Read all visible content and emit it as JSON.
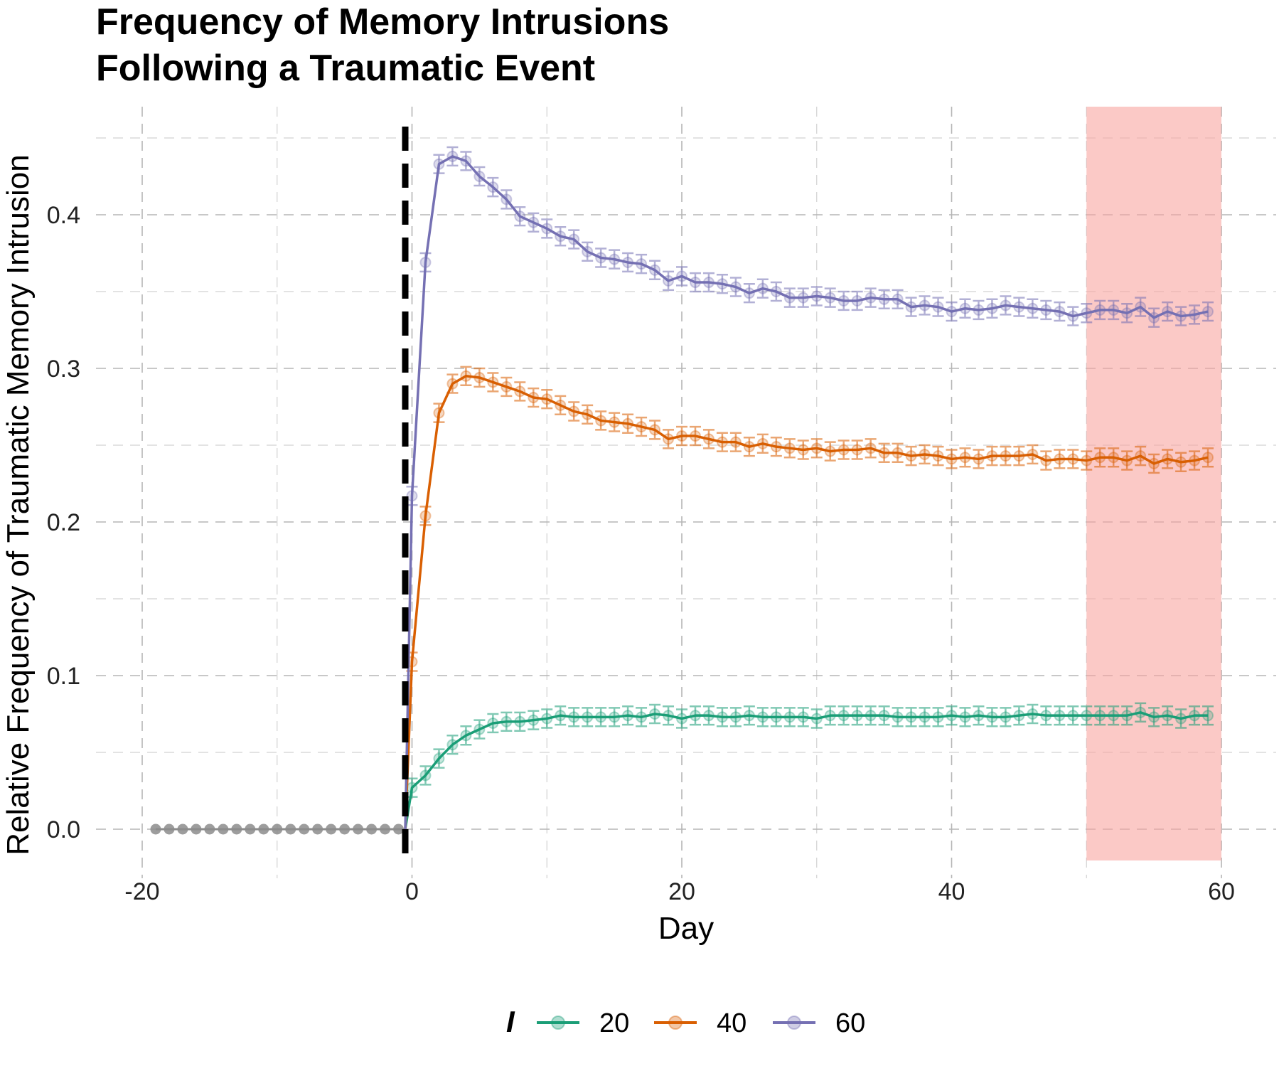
{
  "chart_data": {
    "type": "line",
    "title_line1": "Frequency of Memory Intrusions",
    "title_line2": "Following a Traumatic Event",
    "xlabel": "Day",
    "ylabel": "Relative Frequency of Traumatic Memory Intrusion",
    "xlim": [
      -21,
      61
    ],
    "ylim": [
      -0.02,
      0.47
    ],
    "x_ticks": [
      -20,
      0,
      20,
      40,
      60
    ],
    "x_tick_labels": [
      "-20",
      "0",
      "20",
      "40",
      "60"
    ],
    "y_ticks": [
      0.0,
      0.1,
      0.2,
      0.3,
      0.4
    ],
    "y_tick_labels": [
      "0.0",
      "0.1",
      "0.2",
      "0.3",
      "0.4"
    ],
    "grid": true,
    "event_line_x": -0.5,
    "shaded_region": {
      "x": [
        50,
        60
      ],
      "color": "#f8a5a0"
    },
    "legend": {
      "title": "I",
      "position": "bottom"
    },
    "baseline": {
      "x_start": -19,
      "x_end": -1,
      "value": 0.0,
      "color": "#8c8c8c"
    },
    "error_bar_halfwidth": 0.006,
    "series": [
      {
        "name": "20",
        "color": "#1b9e77",
        "x_start": 0,
        "values": [
          0.027,
          0.035,
          0.046,
          0.055,
          0.061,
          0.065,
          0.069,
          0.07,
          0.07,
          0.071,
          0.072,
          0.074,
          0.073,
          0.073,
          0.073,
          0.073,
          0.074,
          0.073,
          0.075,
          0.074,
          0.072,
          0.074,
          0.074,
          0.073,
          0.073,
          0.074,
          0.073,
          0.073,
          0.073,
          0.073,
          0.072,
          0.074,
          0.074,
          0.074,
          0.074,
          0.074,
          0.073,
          0.073,
          0.073,
          0.073,
          0.074,
          0.073,
          0.074,
          0.073,
          0.073,
          0.074,
          0.075,
          0.074,
          0.074,
          0.074,
          0.074,
          0.074,
          0.074,
          0.074,
          0.076,
          0.073,
          0.074,
          0.072,
          0.074,
          0.074
        ]
      },
      {
        "name": "40",
        "color": "#d95f02",
        "x_start": 0,
        "values": [
          0.109,
          0.204,
          0.271,
          0.29,
          0.295,
          0.294,
          0.291,
          0.288,
          0.285,
          0.281,
          0.28,
          0.276,
          0.272,
          0.27,
          0.266,
          0.265,
          0.264,
          0.262,
          0.26,
          0.254,
          0.256,
          0.256,
          0.254,
          0.252,
          0.252,
          0.249,
          0.251,
          0.249,
          0.248,
          0.247,
          0.248,
          0.246,
          0.247,
          0.247,
          0.248,
          0.245,
          0.245,
          0.243,
          0.244,
          0.243,
          0.241,
          0.242,
          0.241,
          0.243,
          0.243,
          0.243,
          0.244,
          0.24,
          0.241,
          0.241,
          0.24,
          0.242,
          0.242,
          0.24,
          0.243,
          0.238,
          0.241,
          0.239,
          0.24,
          0.242
        ]
      },
      {
        "name": "60",
        "color": "#7570b3",
        "x_start": 0,
        "values": [
          0.217,
          0.369,
          0.433,
          0.438,
          0.435,
          0.425,
          0.418,
          0.41,
          0.399,
          0.395,
          0.391,
          0.386,
          0.384,
          0.376,
          0.372,
          0.371,
          0.369,
          0.368,
          0.364,
          0.357,
          0.36,
          0.356,
          0.356,
          0.355,
          0.353,
          0.349,
          0.352,
          0.35,
          0.346,
          0.346,
          0.347,
          0.346,
          0.344,
          0.344,
          0.346,
          0.345,
          0.345,
          0.34,
          0.341,
          0.34,
          0.337,
          0.339,
          0.338,
          0.339,
          0.341,
          0.34,
          0.339,
          0.338,
          0.337,
          0.334,
          0.336,
          0.338,
          0.338,
          0.336,
          0.34,
          0.333,
          0.337,
          0.334,
          0.335,
          0.337
        ]
      }
    ]
  }
}
